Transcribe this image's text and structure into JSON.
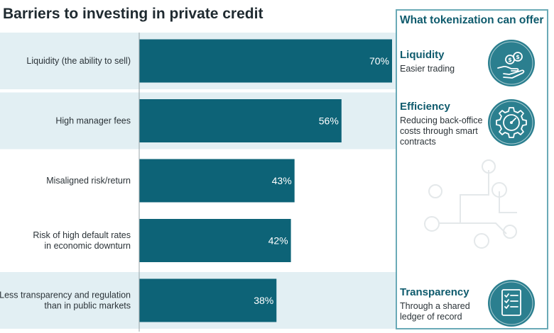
{
  "panel": {
    "title": "What tokenization can offer",
    "items": [
      {
        "name": "Liquidity",
        "desc": "Easier trading",
        "icon": "hand-coins-icon"
      },
      {
        "name": "Efficiency",
        "desc": "Reducing back-office costs through smart contracts",
        "icon": "gear-gauge-icon"
      },
      {
        "name": "Transparency",
        "desc": "Through a shared ledger of record",
        "icon": "checklist-icon"
      }
    ]
  },
  "chart_data": {
    "type": "bar",
    "orientation": "horizontal",
    "title": "Barriers to investing in private credit",
    "categories": [
      "Liquidity (the ability to sell)",
      "High manager fees",
      "Misaligned risk/return",
      "Risk of high default rates in economic downturn",
      "Less transparency and regulation than in public markets"
    ],
    "category_lines": [
      [
        "Liquidity (the ability to sell)"
      ],
      [
        "High manager fees"
      ],
      [
        "Misaligned risk/return"
      ],
      [
        "Risk of high default rates",
        "in economic downturn"
      ],
      [
        "Less transparency and regulation",
        "than in public markets"
      ]
    ],
    "values": [
      70,
      56,
      43,
      42,
      38
    ],
    "value_labels": [
      "70%",
      "56%",
      "43%",
      "42%",
      "38%"
    ],
    "highlighted_rows": [
      0,
      1,
      4
    ],
    "xlim": [
      0,
      100
    ],
    "grid": false,
    "colors": {
      "bar": "#0d6377",
      "highlight_band": "#e2eff3",
      "accent": "#0f5b6d",
      "axis": "#9aa5aa"
    }
  }
}
